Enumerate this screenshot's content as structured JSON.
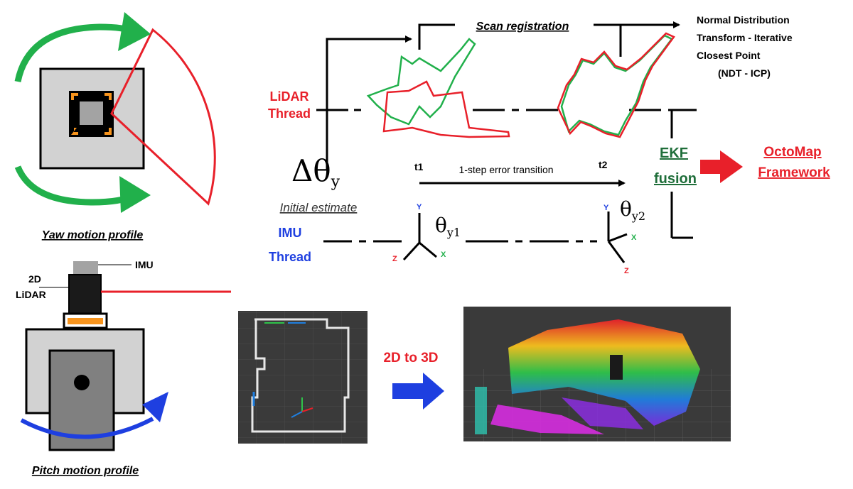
{
  "yaw_caption": "Yaw motion profile",
  "pitch_caption": "Pitch motion profile",
  "imu_label": "IMU",
  "lidar_label_line1": "2D",
  "lidar_label_line2": "LiDAR",
  "lidar_thread_line1": "LiDAR",
  "lidar_thread_line2": "Thread",
  "imu_thread_line1": "IMU",
  "imu_thread_line2": "Thread",
  "scan_registration": "Scan registration",
  "ndt_line1": "Normal Distribution",
  "ndt_line2": "Transform - Iterative",
  "ndt_line3": "Closest Point",
  "ndt_line4": "(NDT - ICP)",
  "delta_theta": "Δθ",
  "delta_theta_sub": "y",
  "initial_estimate": "Initial estimate",
  "t1": "t1",
  "t2": "t2",
  "error_transition": "1-step error transition",
  "theta_y1": "θ",
  "theta_y1_sub": "y1",
  "theta_y2": "θ",
  "theta_y2_sub": "y2",
  "ekf_line1": "EKF",
  "ekf_line2": "fusion",
  "octomap_line1": "OctoMap",
  "octomap_line2": "Framework",
  "axis_y": "Y",
  "axis_x": "X",
  "axis_z": "Z",
  "convert_label": "2D to 3D",
  "colors": {
    "green": "#21b04b",
    "red": "#e8202a",
    "blue": "#1e3fe0",
    "dark_green": "#1f6e3a",
    "orange": "#f7941d",
    "gray_light": "#d2d2d2",
    "gray_mid": "#a3a3a3",
    "gray_dark": "#808080"
  }
}
